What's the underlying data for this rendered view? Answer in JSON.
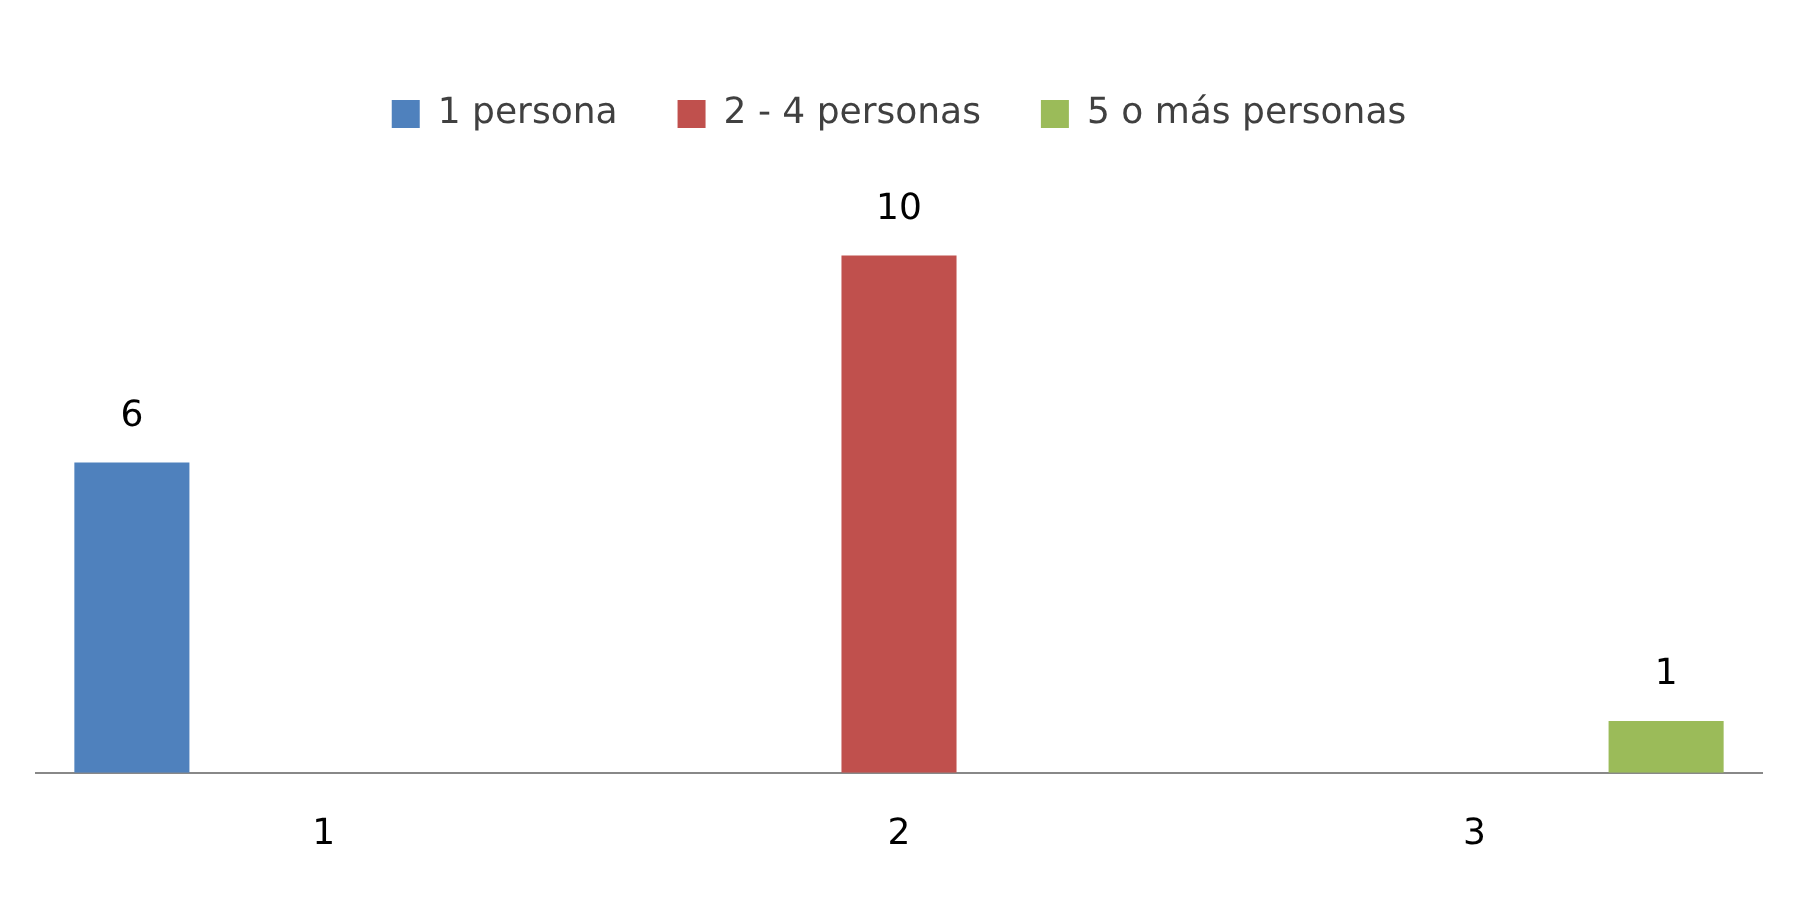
{
  "chart_data": {
    "type": "bar",
    "categories": [
      "1",
      "2",
      "3"
    ],
    "series": [
      {
        "name": "1 persona",
        "color": "#4f81bd",
        "values": [
          6,
          null,
          null
        ]
      },
      {
        "name": "2 - 4 personas",
        "color": "#c0504d",
        "values": [
          null,
          10,
          null
        ]
      },
      {
        "name": "5 o más personas",
        "color": "#9bbb59",
        "values": [
          null,
          null,
          1
        ]
      }
    ],
    "data_labels": true,
    "legend": "top",
    "grid": false
  }
}
